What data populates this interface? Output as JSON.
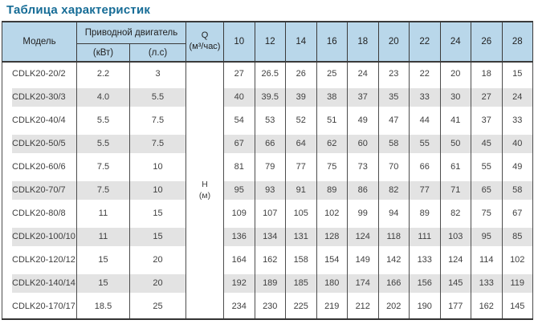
{
  "title": "Таблица характеристик",
  "colors": {
    "title_text": "#166c96",
    "header_bg": "#b9d7ea",
    "stripe_bg": "#e3e3e3",
    "border_dark": "#3a3a3a"
  },
  "table": {
    "headers": {
      "model": "Модель",
      "motor_group": "Приводной двигатель",
      "motor_kw": "(кВт)",
      "motor_hp": "(л.с)",
      "q_line1": "Q",
      "q_line2": "(м³/час)",
      "flow_columns": [
        "10",
        "12",
        "14",
        "16",
        "18",
        "20",
        "22",
        "24",
        "26",
        "28"
      ],
      "h_line1": "Н",
      "h_line2": "(м)"
    },
    "rows": [
      {
        "model": "CDLK20-20/2",
        "kw": "2.2",
        "hp": "3",
        "values": [
          "27",
          "26.5",
          "26",
          "25",
          "24",
          "23",
          "22",
          "20",
          "18",
          "15"
        ]
      },
      {
        "model": "CDLK20-30/3",
        "kw": "4.0",
        "hp": "5.5",
        "values": [
          "40",
          "39.5",
          "39",
          "38",
          "37",
          "35",
          "33",
          "30",
          "27",
          "24"
        ]
      },
      {
        "model": "CDLK20-40/4",
        "kw": "5.5",
        "hp": "7.5",
        "values": [
          "54",
          "53",
          "52",
          "51",
          "49",
          "47",
          "44",
          "41",
          "37",
          "33"
        ]
      },
      {
        "model": "CDLK20-50/5",
        "kw": "5.5",
        "hp": "7.5",
        "values": [
          "67",
          "66",
          "64",
          "62",
          "60",
          "58",
          "55",
          "50",
          "45",
          "40"
        ]
      },
      {
        "model": "CDLK20-60/6",
        "kw": "7.5",
        "hp": "10",
        "values": [
          "81",
          "79",
          "77",
          "75",
          "73",
          "70",
          "66",
          "61",
          "55",
          "49"
        ]
      },
      {
        "model": "CDLK20-70/7",
        "kw": "7.5",
        "hp": "10",
        "values": [
          "95",
          "93",
          "91",
          "89",
          "86",
          "82",
          "77",
          "71",
          "65",
          "58"
        ]
      },
      {
        "model": "CDLK20-80/8",
        "kw": "11",
        "hp": "15",
        "values": [
          "109",
          "107",
          "105",
          "102",
          "99",
          "94",
          "89",
          "82",
          "75",
          "67"
        ]
      },
      {
        "model": "CDLK20-100/10",
        "kw": "11",
        "hp": "15",
        "values": [
          "136",
          "134",
          "131",
          "128",
          "124",
          "118",
          "111",
          "103",
          "95",
          "85"
        ]
      },
      {
        "model": "CDLK20-120/12",
        "kw": "15",
        "hp": "20",
        "values": [
          "164",
          "162",
          "158",
          "154",
          "149",
          "142",
          "133",
          "124",
          "114",
          "102"
        ]
      },
      {
        "model": "CDLK20-140/14",
        "kw": "15",
        "hp": "20",
        "values": [
          "192",
          "189",
          "185",
          "180",
          "174",
          "166",
          "156",
          "145",
          "133",
          "119"
        ]
      },
      {
        "model": "CDLK20-170/17",
        "kw": "18.5",
        "hp": "25",
        "values": [
          "234",
          "230",
          "225",
          "219",
          "212",
          "202",
          "190",
          "177",
          "162",
          "145"
        ]
      }
    ]
  }
}
